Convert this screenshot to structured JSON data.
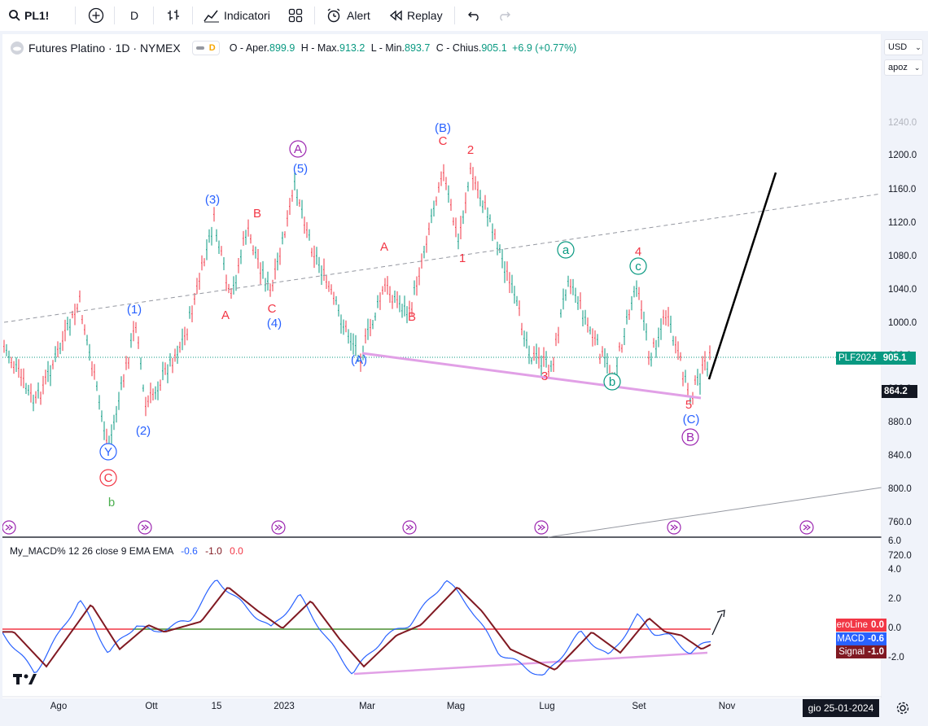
{
  "toolbar": {
    "symbol": "PL1!",
    "interval": "D",
    "indicators_label": "Indicatori",
    "alert_label": "Alert",
    "replay_label": "Replay"
  },
  "legend": {
    "title": "Futures Platino · 1D · NYMEX",
    "badge": "D",
    "open_label": "O - Aper.",
    "open": "899.9",
    "high_label": "H - Max.",
    "high": "913.2",
    "low_label": "L - Min.",
    "low": "893.7",
    "close_label": "C - Chius.",
    "close": "905.1",
    "change": "+6.9 (+0.77%)"
  },
  "axis_controls": {
    "currency": "USD",
    "scale": "apoz"
  },
  "price_axis": [
    "1240.0",
    "1200.0",
    "1160.0",
    "1120.0",
    "1080.0",
    "1040.0",
    "1000.0",
    "960.0",
    "920.0",
    "880.0",
    "840.0",
    "800.0",
    "760.0",
    "720.0"
  ],
  "price_tags": {
    "symbol_tag": "PLF2024",
    "last_price": "905.1",
    "cursor_price": "864.2"
  },
  "macd_axis": [
    "6.0",
    "4.0",
    "2.0",
    "0.0",
    "-2.0"
  ],
  "macd_legend": {
    "name": "My_MACD% 12 26 close 9 EMA EMA",
    "v1": "-0.6",
    "v2": "-1.0",
    "v3": "0.0"
  },
  "macd_tags": [
    {
      "key": "ZeroLine",
      "value": "0.0",
      "color": "#f23645"
    },
    {
      "key": "MACD",
      "value": "-0.6",
      "color": "#2962ff"
    },
    {
      "key": "Signal",
      "value": "-1.0",
      "color": "#801922"
    }
  ],
  "time_axis": [
    "Ago",
    "Ott",
    "15",
    "2023",
    "Mar",
    "Mag",
    "Lug",
    "Set",
    "Nov"
  ],
  "cursor_date": "gio 25-01-2024",
  "wave_labels": [
    {
      "text": "(3)",
      "color": "#2962ff"
    },
    {
      "text": "B",
      "color": "#f23645"
    },
    {
      "text": "A",
      "color": "#9c27b0"
    },
    {
      "text": "(5)",
      "color": "#2962ff"
    },
    {
      "text": "(B)",
      "color": "#2962ff"
    },
    {
      "text": "C",
      "color": "#f23645"
    },
    {
      "text": "2",
      "color": "#f23645"
    },
    {
      "text": "A",
      "color": "#f23645"
    },
    {
      "text": "1",
      "color": "#f23645"
    },
    {
      "text": "a",
      "color": "#089981"
    },
    {
      "text": "4",
      "color": "#f23645"
    },
    {
      "text": "c",
      "color": "#089981"
    },
    {
      "text": "(1)",
      "color": "#2962ff"
    },
    {
      "text": "A",
      "color": "#f23645"
    },
    {
      "text": "C",
      "color": "#f23645"
    },
    {
      "text": "(4)",
      "color": "#2962ff"
    },
    {
      "text": "B",
      "color": "#f23645"
    },
    {
      "text": "(A)",
      "color": "#2962ff"
    },
    {
      "text": "3",
      "color": "#f23645"
    },
    {
      "text": "b",
      "color": "#089981"
    },
    {
      "text": "5",
      "color": "#f23645"
    },
    {
      "text": "(C)",
      "color": "#2962ff"
    },
    {
      "text": "B",
      "color": "#9c27b0"
    },
    {
      "text": "(2)",
      "color": "#2962ff"
    },
    {
      "text": "Y",
      "color": "#2962ff"
    },
    {
      "text": "C",
      "color": "#f23645"
    },
    {
      "text": "b",
      "color": "#4caf50"
    }
  ]
}
